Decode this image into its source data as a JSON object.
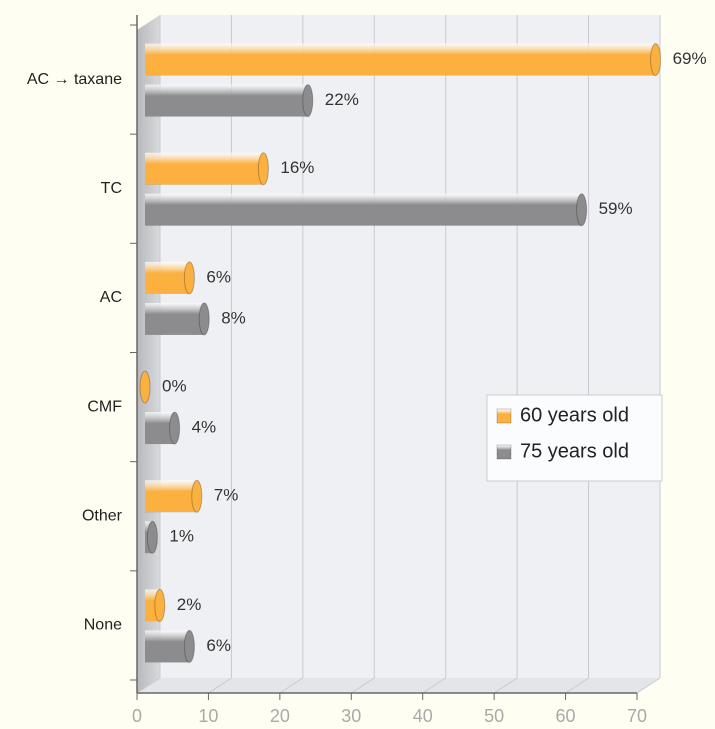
{
  "chart_data": {
    "type": "bar",
    "orientation": "horizontal",
    "categories": [
      "AC → taxane",
      "TC",
      "AC",
      "CMF",
      "Other",
      "None"
    ],
    "series": [
      {
        "name": "60 years old",
        "color": "#fbb040",
        "values": [
          69,
          16,
          6,
          0,
          7,
          2
        ],
        "value_labels": [
          "69%",
          "16%",
          "6%",
          "0%",
          "7%",
          "2%"
        ]
      },
      {
        "name": "75 years old",
        "color": "#8c8c8e",
        "values": [
          22,
          59,
          8,
          4,
          1,
          6
        ],
        "value_labels": [
          "22%",
          "59%",
          "8%",
          "4%",
          "1%",
          "6%"
        ]
      }
    ],
    "xlim": [
      0,
      70
    ],
    "xticks": [
      0,
      10,
      20,
      30,
      40,
      50,
      60,
      70
    ],
    "grid": true,
    "legend": "center right"
  }
}
